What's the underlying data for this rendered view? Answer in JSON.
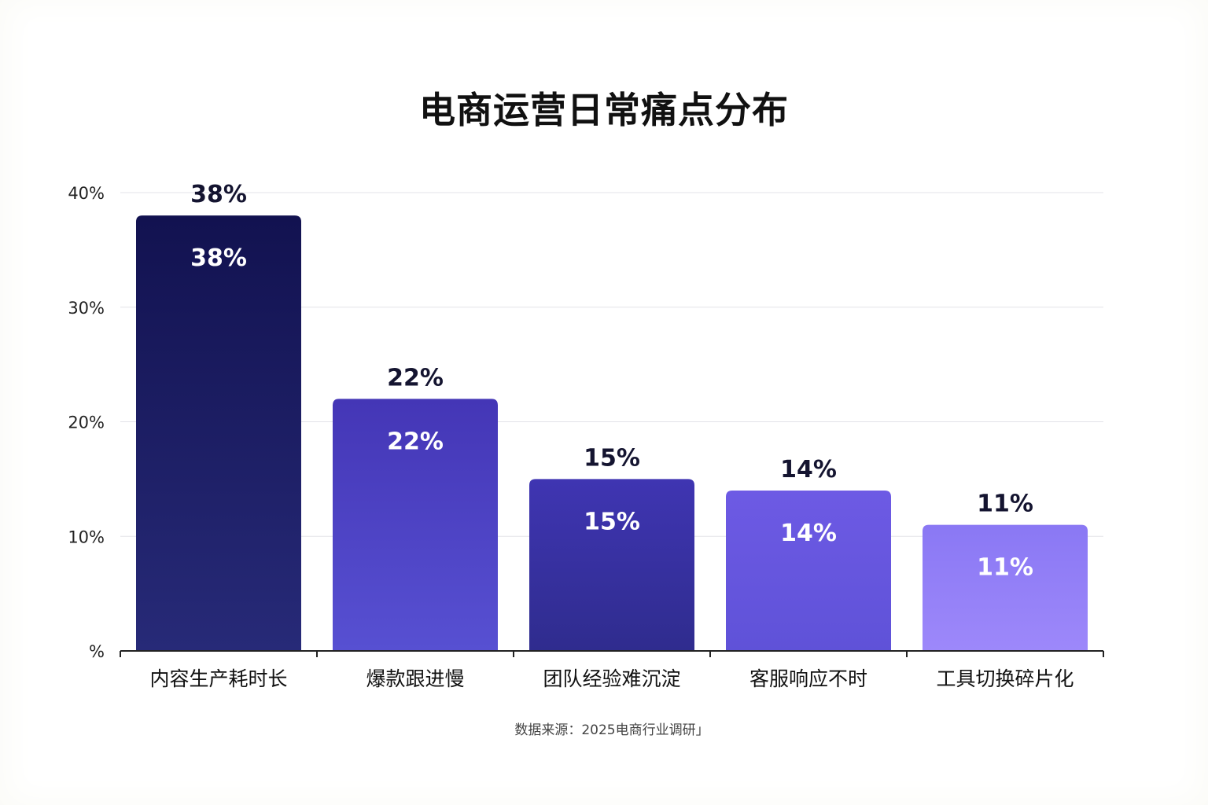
{
  "title": "电商运营日常痛点分布",
  "source": "数据来源：2025电商行业调研」",
  "chart_data": {
    "type": "bar",
    "title": "电商运营日常痛点分布",
    "categories": [
      "内容生产耗时长",
      "爆款跟进慢",
      "团队经验难沉淀",
      "客服响应不时",
      "工具切换碎片化"
    ],
    "values": [
      38,
      22,
      15,
      14,
      11
    ],
    "value_labels": [
      "38%",
      "22%",
      "15%",
      "14%",
      "11%"
    ],
    "yticks": [
      0,
      10,
      20,
      30,
      40
    ],
    "ytick_labels": [
      "%",
      "10%",
      "20%",
      "30%",
      "40%"
    ],
    "ylim": [
      0,
      40
    ],
    "grid": true,
    "legend": "none",
    "colors": [
      [
        "#121250",
        "#272a78"
      ],
      [
        "#4436b6",
        "#5750d2"
      ],
      [
        "#3f35b2",
        "#2f2c8e"
      ],
      [
        "#6d5ae4",
        "#5f52d8"
      ],
      [
        "#8a78f4",
        "#9d88fa"
      ]
    ]
  }
}
